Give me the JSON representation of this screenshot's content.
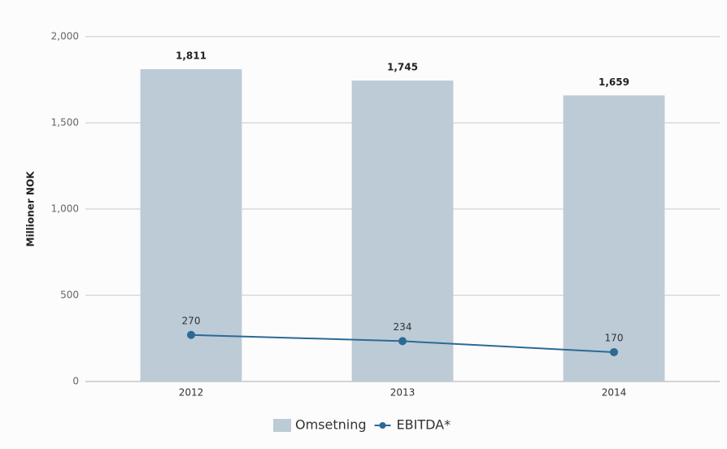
{
  "chart_data": {
    "type": "bar",
    "ylabel": "Millioner NOK",
    "categories": [
      "2012",
      "2013",
      "2014"
    ],
    "series": [
      {
        "name": "Omsetning",
        "type": "bar",
        "color": "#bccbd6",
        "values": [
          1811,
          1745,
          1659
        ],
        "value_labels": [
          "1,811",
          "1,745",
          "1,659"
        ]
      },
      {
        "name": "EBITDA*",
        "type": "line",
        "color": "#2b6a94",
        "values": [
          270,
          234,
          170
        ]
      }
    ],
    "ylim": [
      0,
      2000
    ],
    "yticks": [
      0,
      500,
      {
        "value": 1000,
        "label": "1,000"
      },
      {
        "value": 1500,
        "label": "1,500"
      },
      {
        "value": 2000,
        "label": "2,000"
      }
    ],
    "grid": true,
    "legend": "bottom"
  }
}
